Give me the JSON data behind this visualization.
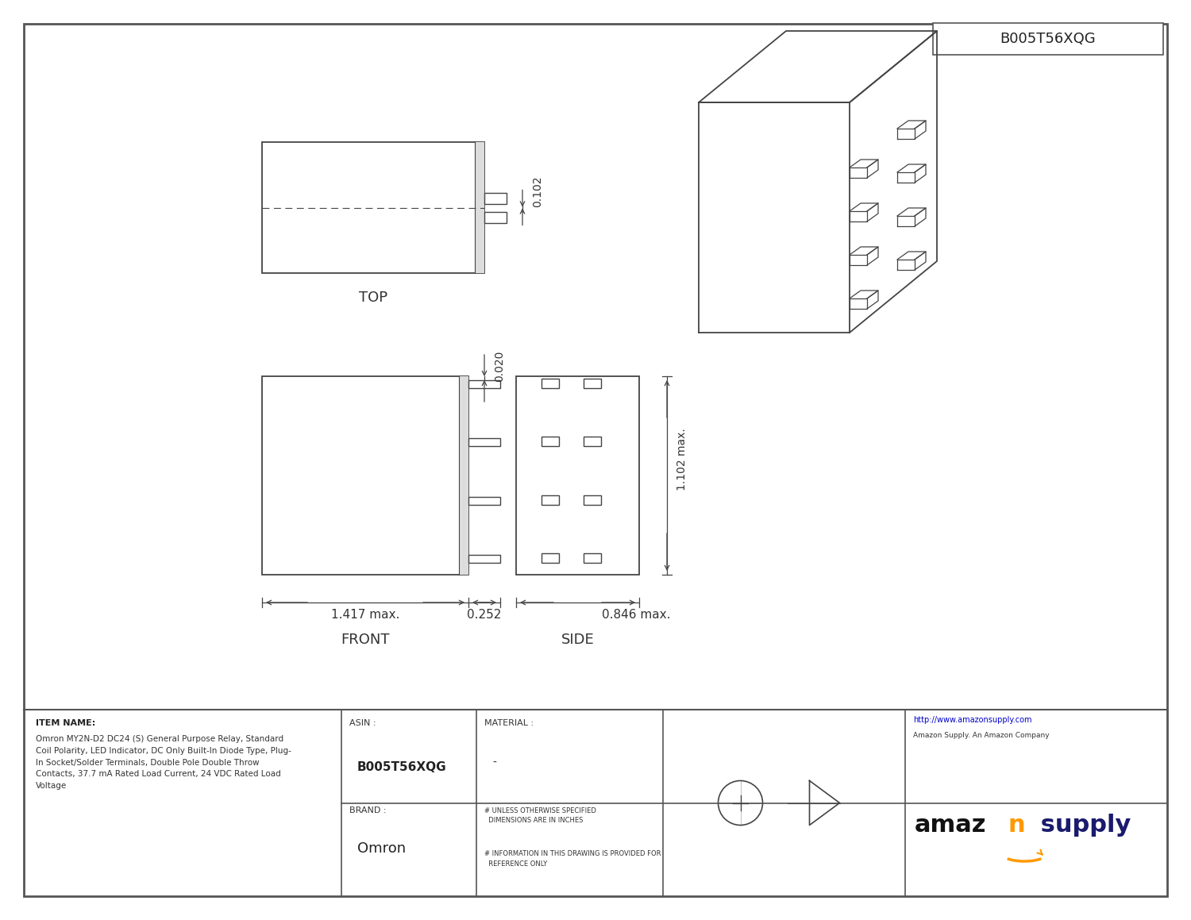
{
  "bg_color": "#ffffff",
  "border_color": "#555555",
  "line_color": "#444444",
  "title_box_text": "B005T56XQG",
  "item_name_label": "ITEM NAME:",
  "item_description": "Omron MY2N-D2 DC24 (S) General Purpose Relay, Standard\nCoil Polarity, LED Indicator, DC Only Built-In Diode Type, Plug-\nIn Socket/Solder Terminals, Double Pole Double Throw\nContacts, 37.7 mA Rated Load Current, 24 VDC Rated Load\nVoltage",
  "asin_label": "ASIN :",
  "asin_value": "B005T56XQG",
  "brand_label": "BRAND :",
  "brand_value": "Omron",
  "material_label": "MATERIAL :",
  "material_value": "-",
  "note1": "# UNLESS OTHERWISE SPECIFIED\n  DIMENSIONS ARE IN INCHES",
  "note2": "# INFORMATION IN THIS DRAWING IS PROVIDED FOR\n  REFERENCE ONLY",
  "url": "http://www.amazonsupply.com",
  "url_sub": "Amazon Supply. An Amazon Company",
  "top_label": "TOP",
  "front_label": "FRONT",
  "side_label": "SIDE",
  "dim_top_pin": "0.102",
  "dim_front_pin": "0.020",
  "dim_front_width": "1.417 max.",
  "dim_pin_width": "0.252",
  "dim_side_width": "0.846 max.",
  "dim_side_height": "1.102 max."
}
